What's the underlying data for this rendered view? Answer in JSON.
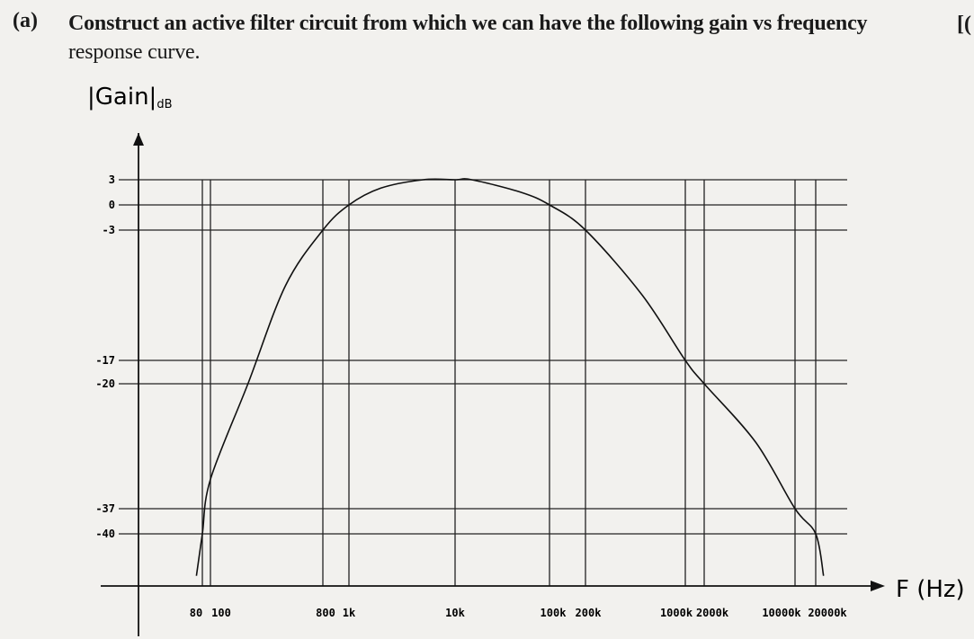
{
  "question": {
    "label": "(a)",
    "text_line1": "Construct an active filter circuit from which we can have the following gain vs frequency",
    "text_line2": "response curve.",
    "marks_fragment": "[("
  },
  "chart_data": {
    "type": "line",
    "title": "",
    "ylabel": "|Gain|",
    "ylabel_sub": "dB",
    "xlabel": "F (Hz)",
    "x_scale": "log",
    "y_ticks": [
      3,
      0,
      -3,
      -17,
      -20,
      -37,
      -40
    ],
    "x_ticks": [
      80,
      100,
      800,
      1000,
      10000,
      100000,
      200000,
      1000000,
      2000000,
      10000000,
      20000000
    ],
    "x_tick_labels": [
      "80",
      "100",
      "800",
      "1k",
      "10k",
      "100k",
      "200k",
      "1000k",
      "2000k",
      "10000k",
      "20000k"
    ],
    "grid": true,
    "series": [
      {
        "x": [
          68,
          80,
          100,
          200,
          400,
          800,
          1000,
          2000,
          5000,
          10000,
          15000,
          50000,
          100000,
          200000,
          500000,
          1000000,
          2000000,
          5000000,
          10000000,
          20000000,
          26000000
        ],
        "y": [
          -45,
          -40,
          -33,
          -20,
          -9,
          -3,
          0,
          2,
          3,
          3,
          3,
          1.5,
          0,
          -3,
          -10,
          -17,
          -20,
          -28,
          -37,
          -40,
          -45
        ]
      }
    ]
  }
}
